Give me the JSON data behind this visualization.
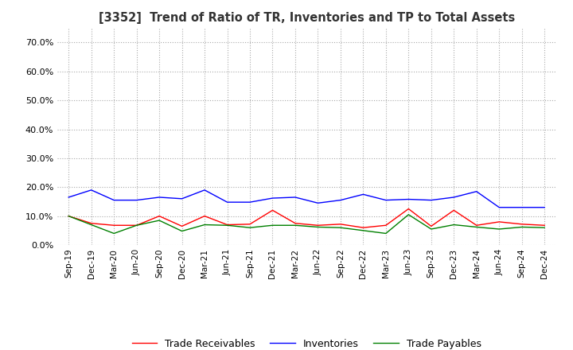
{
  "title": "[3352]  Trend of Ratio of TR, Inventories and TP to Total Assets",
  "xlabels": [
    "Sep-19",
    "Dec-19",
    "Mar-20",
    "Jun-20",
    "Sep-20",
    "Dec-20",
    "Mar-21",
    "Jun-21",
    "Sep-21",
    "Dec-21",
    "Mar-22",
    "Jun-22",
    "Sep-22",
    "Dec-22",
    "Mar-23",
    "Jun-23",
    "Sep-23",
    "Dec-23",
    "Mar-24",
    "Jun-24",
    "Sep-24",
    "Dec-24"
  ],
  "ylim": [
    0.0,
    0.75
  ],
  "yticks": [
    0.0,
    0.1,
    0.2,
    0.3,
    0.4,
    0.5,
    0.6,
    0.7
  ],
  "trade_receivables": [
    0.1,
    0.075,
    0.068,
    0.068,
    0.1,
    0.065,
    0.1,
    0.07,
    0.072,
    0.12,
    0.075,
    0.068,
    0.072,
    0.06,
    0.068,
    0.125,
    0.065,
    0.12,
    0.068,
    0.08,
    0.072,
    0.068
  ],
  "inventories": [
    0.165,
    0.19,
    0.155,
    0.155,
    0.165,
    0.16,
    0.19,
    0.148,
    0.148,
    0.162,
    0.165,
    0.145,
    0.155,
    0.175,
    0.155,
    0.158,
    0.155,
    0.165,
    0.185,
    0.13,
    0.13,
    0.13
  ],
  "trade_payables": [
    0.1,
    0.07,
    0.04,
    0.068,
    0.085,
    0.048,
    0.07,
    0.068,
    0.06,
    0.068,
    0.068,
    0.062,
    0.06,
    0.05,
    0.04,
    0.105,
    0.055,
    0.07,
    0.062,
    0.055,
    0.062,
    0.06
  ],
  "tr_color": "#ff0000",
  "inv_color": "#0000ff",
  "tp_color": "#008000",
  "legend_labels": [
    "Trade Receivables",
    "Inventories",
    "Trade Payables"
  ],
  "bg_color": "#ffffff",
  "grid_color": "#aaaaaa"
}
